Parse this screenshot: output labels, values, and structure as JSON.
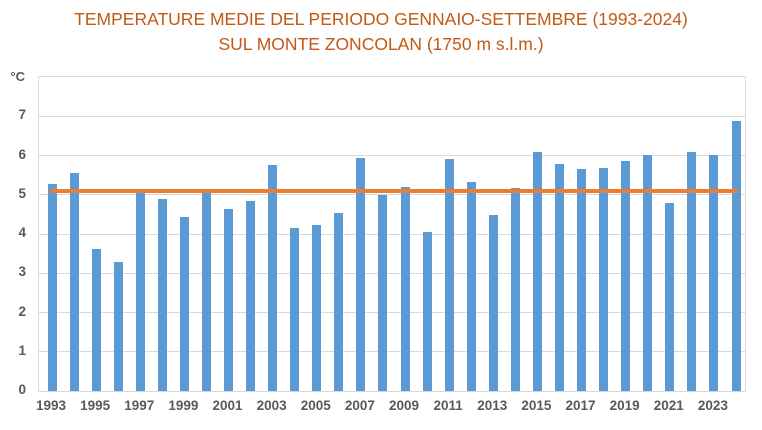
{
  "chart": {
    "title_line1": "TEMPERATURE MEDIE DEL PERIODO GENNAIO-SETTEMBRE (1993-2024)",
    "title_line2": "SUL MONTE ZONCOLAN (1750 m s.l.m.)"
  },
  "chart_data": {
    "type": "bar",
    "title": "TEMPERATURE MEDIE DEL PERIODO GENNAIO-SETTEMBRE (1993-2024) SUL MONTE ZONCOLAN (1750 m s.l.m.)",
    "unit_label": "°C",
    "categories": [
      "1993",
      "1994",
      "1995",
      "1996",
      "1997",
      "1998",
      "1999",
      "2000",
      "2001",
      "2002",
      "2003",
      "2004",
      "2005",
      "2006",
      "2007",
      "2008",
      "2009",
      "2010",
      "2011",
      "2012",
      "2013",
      "2014",
      "2015",
      "2016",
      "2017",
      "2018",
      "2019",
      "2020",
      "2021",
      "2022",
      "2023",
      "2024"
    ],
    "values": [
      5.27,
      5.55,
      3.63,
      3.28,
      5.07,
      4.89,
      4.44,
      5.04,
      4.63,
      4.85,
      5.76,
      4.16,
      4.24,
      4.54,
      5.93,
      4.99,
      5.19,
      4.05,
      5.91,
      5.32,
      4.48,
      5.17,
      6.08,
      5.78,
      5.66,
      5.68,
      5.85,
      6.02,
      4.79,
      6.1,
      6.02,
      6.87
    ],
    "reference_line": {
      "value": 5.1,
      "color": "#ED7D31"
    },
    "ylim": [
      0,
      8
    ],
    "yticks": [
      "0",
      "1",
      "2",
      "3",
      "4",
      "5",
      "6",
      "7"
    ],
    "xtick_labels": [
      "1993",
      "1995",
      "1997",
      "1999",
      "2001",
      "2003",
      "2005",
      "2007",
      "2009",
      "2011",
      "2013",
      "2015",
      "2017",
      "2019",
      "2021",
      "2023"
    ],
    "grid": true,
    "legend": "none",
    "bar_color": "#5B9BD5",
    "title_color": "#C45911",
    "axis_text_color": "#595959",
    "grid_color": "#D9D9D9"
  }
}
